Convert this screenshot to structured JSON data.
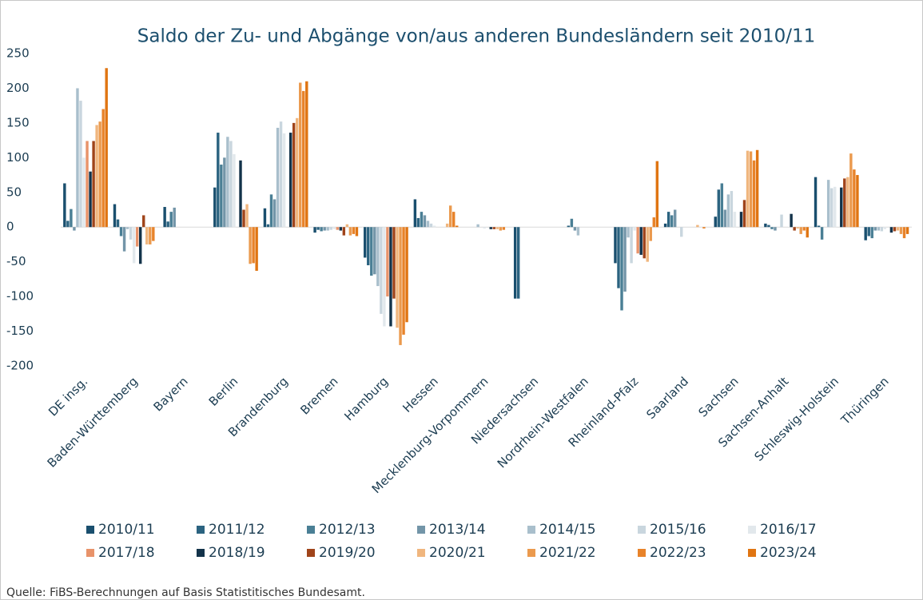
{
  "chart_data": {
    "type": "bar",
    "title": "Saldo der Zu- und Abgänge von/aus anderen Bundesländern seit 2010/11",
    "source": "Quelle: FiBS-Berechnungen auf Basis Statistitisches Bundesamt.",
    "categories": [
      "DE insg.",
      "Baden-Württemberg",
      "Bayern",
      "Berlin",
      "Brandenburg",
      "Bremen",
      "Hamburg",
      "Hessen",
      "Mecklenburg-Vorpommern",
      "Niedersachsen",
      "Nordrhein-Westfalen",
      "Rheinland-Pfalz",
      "Saarland",
      "Sachsen",
      "Sachsen-Anhalt",
      "Schleswig-Holstein",
      "Thüringen"
    ],
    "ylim": [
      -200,
      250
    ],
    "yticks": [
      -200,
      -150,
      -100,
      -50,
      0,
      50,
      100,
      150,
      200,
      250
    ],
    "series": [
      {
        "name": "2010/11",
        "color": "#1a4f6e",
        "values": [
          63,
          33,
          29,
          57,
          27,
          -8,
          -44,
          40,
          0,
          -103,
          0,
          -52,
          5,
          15,
          5,
          72,
          -19
        ]
      },
      {
        "name": "2011/12",
        "color": "#2b6380",
        "values": [
          9,
          11,
          8,
          136,
          4,
          -4,
          -55,
          13,
          0,
          -103,
          2,
          -88,
          22,
          54,
          3,
          2,
          -13
        ]
      },
      {
        "name": "2012/13",
        "color": "#4a7f95",
        "values": [
          26,
          -13,
          22,
          90,
          47,
          -6,
          -70,
          22,
          0,
          0,
          12,
          -120,
          17,
          63,
          -3,
          -18,
          -16
        ]
      },
      {
        "name": "2013/14",
        "color": "#7395a8",
        "values": [
          -5,
          -35,
          28,
          100,
          40,
          -5,
          -68,
          17,
          0,
          0,
          -5,
          -93,
          25,
          25,
          -5,
          0,
          -5
        ]
      },
      {
        "name": "2014/15",
        "color": "#a9bfcc",
        "values": [
          200,
          -3,
          0,
          130,
          143,
          -5,
          -85,
          9,
          4,
          0,
          -12,
          -15,
          0,
          47,
          0,
          68,
          -5
        ]
      },
      {
        "name": "2015/16",
        "color": "#c9d6de",
        "values": [
          182,
          -18,
          0,
          124,
          152,
          -4,
          -125,
          5,
          0,
          0,
          0,
          -52,
          -14,
          52,
          18,
          56,
          -6
        ]
      },
      {
        "name": "2016/17",
        "color": "#e2e8ec",
        "values": [
          100,
          -52,
          0,
          105,
          135,
          -3,
          -143,
          2,
          -2,
          0,
          0,
          -5,
          0,
          22,
          0,
          58,
          -3
        ]
      },
      {
        "name": "2017/18",
        "color": "#e8936a",
        "values": [
          124,
          -28,
          0,
          0,
          0,
          -4,
          -100,
          0,
          0,
          0,
          0,
          -38,
          0,
          0,
          0,
          0,
          0
        ]
      },
      {
        "name": "2018/19",
        "color": "#13334a",
        "values": [
          80,
          -53,
          0,
          96,
          136,
          -5,
          -143,
          0,
          -3,
          0,
          0,
          -40,
          0,
          22,
          19,
          57,
          -8
        ]
      },
      {
        "name": "2019/20",
        "color": "#a0441a",
        "values": [
          124,
          17,
          0,
          25,
          150,
          -12,
          -103,
          0,
          -3,
          0,
          0,
          -45,
          0,
          39,
          -5,
          70,
          -6
        ]
      },
      {
        "name": "2020/21",
        "color": "#f0b67e",
        "values": [
          147,
          -25,
          0,
          33,
          157,
          4,
          -145,
          5,
          -3,
          0,
          0,
          -50,
          3,
          110,
          -2,
          72,
          -5
        ]
      },
      {
        "name": "2021/22",
        "color": "#eb9a4e",
        "values": [
          152,
          -25,
          0,
          -53,
          208,
          -12,
          -170,
          31,
          -5,
          0,
          0,
          -20,
          0,
          109,
          -10,
          106,
          -10
        ]
      },
      {
        "name": "2022/23",
        "color": "#e8832a",
        "values": [
          170,
          -20,
          0,
          -52,
          196,
          -10,
          -155,
          22,
          -4,
          0,
          0,
          14,
          -2,
          96,
          -5,
          83,
          -16
        ]
      },
      {
        "name": "2023/24",
        "color": "#e07512",
        "values": [
          229,
          0,
          0,
          -63,
          210,
          -13,
          -137,
          2,
          0,
          0,
          0,
          95,
          0,
          111,
          -15,
          75,
          -10
        ]
      }
    ]
  }
}
